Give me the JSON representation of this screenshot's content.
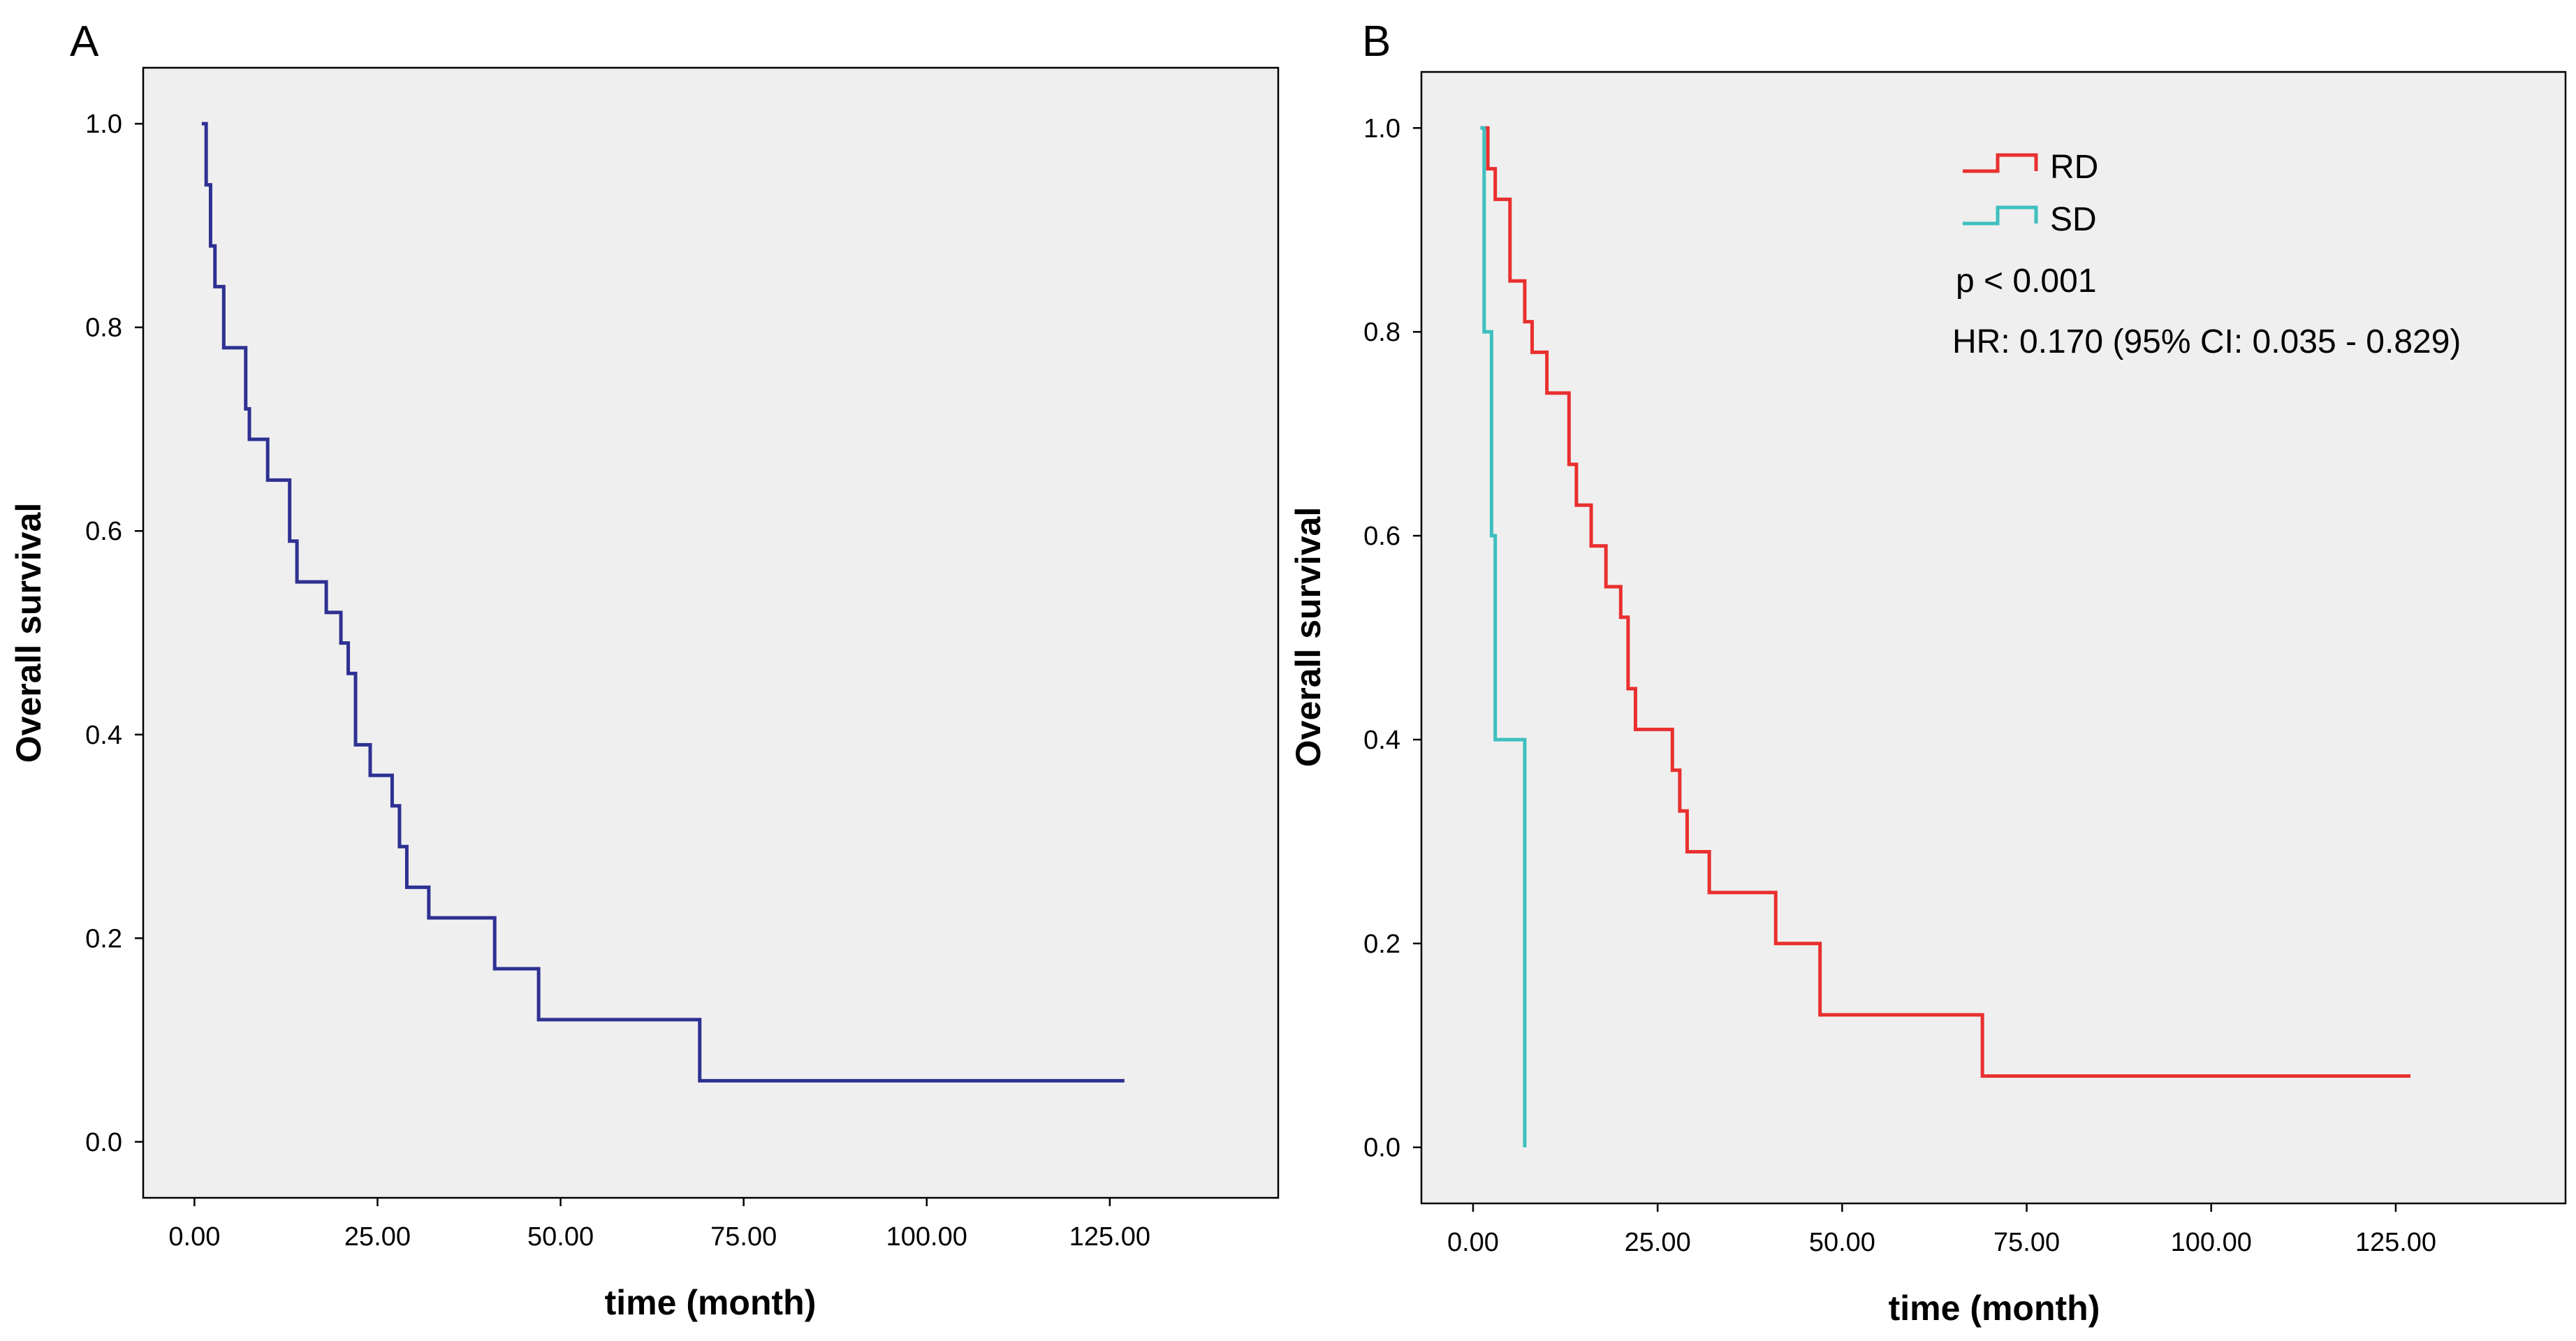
{
  "colors": {
    "overall": "#2e3192",
    "RD": "#e8302f",
    "SD": "#3fbfbf",
    "background": "#efefef"
  },
  "chart_data": [
    {
      "panel": "A",
      "type": "line",
      "step": true,
      "xlabel": "time (month)",
      "ylabel": "Overall survival",
      "xlim": [
        -7,
        148
      ],
      "ylim": [
        -0.055,
        1.055
      ],
      "xticks": [
        0,
        25,
        50,
        75,
        100,
        125
      ],
      "xtick_labels": [
        "0.00",
        "25.00",
        "50.00",
        "75.00",
        "100.00",
        "125.00"
      ],
      "yticks": [
        0,
        0.2,
        0.4,
        0.6,
        0.8,
        1.0
      ],
      "ytick_labels": [
        "0.0",
        "0.2",
        "0.4",
        "0.6",
        "0.8",
        "1.0"
      ],
      "series": [
        {
          "name": "Overall",
          "color": "#2e3192",
          "x": [
            1,
            1.6,
            2.2,
            2.8,
            4,
            7,
            7.5,
            9,
            10,
            13,
            14,
            16,
            18,
            20,
            21,
            22,
            24,
            27,
            28,
            29,
            32,
            41,
            47,
            52,
            65,
            69,
            127
          ],
          "y": [
            1.0,
            0.94,
            0.88,
            0.84,
            0.78,
            0.72,
            0.69,
            0.69,
            0.65,
            0.59,
            0.55,
            0.55,
            0.52,
            0.49,
            0.46,
            0.39,
            0.36,
            0.33,
            0.29,
            0.25,
            0.22,
            0.17,
            0.12,
            0.12,
            0.12,
            0.06,
            0.06
          ]
        }
      ]
    },
    {
      "panel": "B",
      "type": "line",
      "step": true,
      "xlabel": "time (month)",
      "ylabel": "Overall survival",
      "xlim": [
        -7,
        148
      ],
      "ylim": [
        -0.055,
        1.055
      ],
      "xticks": [
        0,
        25,
        50,
        75,
        100,
        125
      ],
      "xtick_labels": [
        "0.00",
        "25.00",
        "50.00",
        "75.00",
        "100.00",
        "125.00"
      ],
      "yticks": [
        0,
        0.2,
        0.4,
        0.6,
        0.8,
        1.0
      ],
      "ytick_labels": [
        "0.0",
        "0.2",
        "0.4",
        "0.6",
        "0.8",
        "1.0"
      ],
      "legend_position": "top-right",
      "legend": [
        {
          "label": "RD",
          "color": "#e8302f"
        },
        {
          "label": "SD",
          "color": "#3fbfbf"
        }
      ],
      "annotations": [
        "p < 0.001",
        "HR: 0.170 (95% CI: 0.035 - 0.829)"
      ],
      "series": [
        {
          "name": "RD",
          "color": "#e8302f",
          "x": [
            1,
            2,
            3,
            5,
            7,
            8,
            10,
            13,
            14,
            16,
            18,
            20,
            21,
            22,
            24,
            27,
            28,
            29,
            32,
            41,
            47,
            69,
            127
          ],
          "y": [
            1.0,
            0.96,
            0.93,
            0.85,
            0.81,
            0.78,
            0.74,
            0.67,
            0.63,
            0.59,
            0.55,
            0.52,
            0.45,
            0.41,
            0.41,
            0.37,
            0.33,
            0.29,
            0.25,
            0.2,
            0.13,
            0.07,
            0.07
          ]
        },
        {
          "name": "SD",
          "color": "#3fbfbf",
          "x": [
            1,
            1.5,
            2.5,
            3,
            7,
            7
          ],
          "y": [
            1.0,
            0.8,
            0.6,
            0.4,
            0.4,
            0.0
          ]
        }
      ]
    }
  ]
}
